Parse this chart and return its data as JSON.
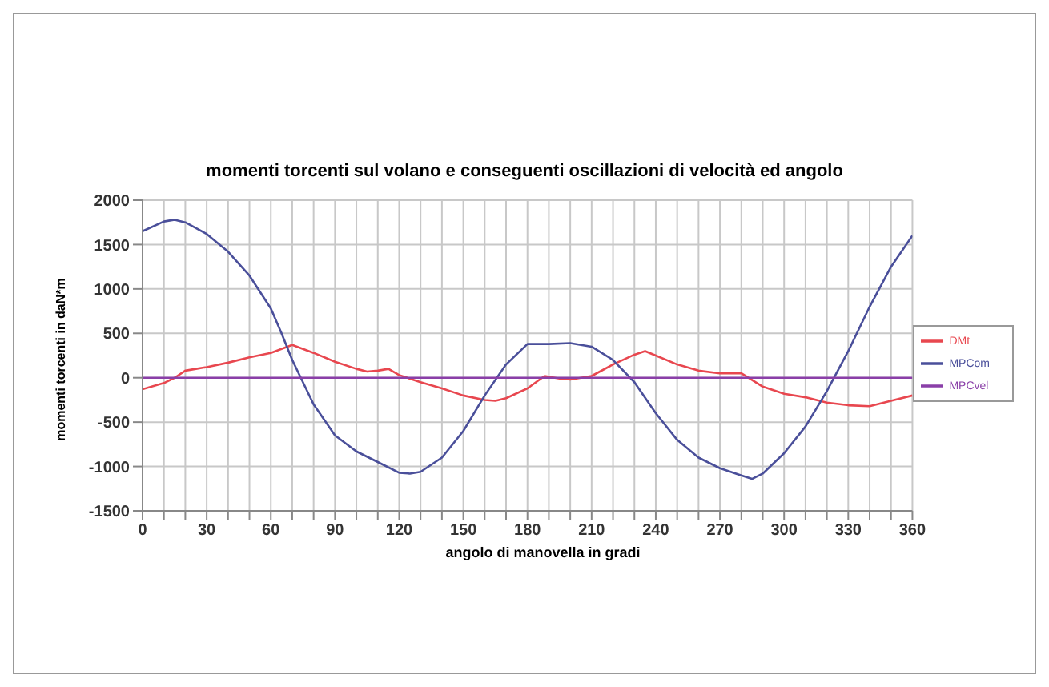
{
  "chart_data": {
    "type": "line",
    "title": "momenti torcenti sul volano e conseguenti oscillazioni di velocità ed angolo",
    "xlabel": "angolo di manovella in gradi",
    "ylabel": "momenti torcenti in daN*m",
    "series": [
      {
        "name": "DMt",
        "color": "#e8474f",
        "x": [
          0,
          10,
          15,
          20,
          25,
          30,
          40,
          50,
          60,
          70,
          80,
          90,
          100,
          105,
          110,
          115,
          120,
          130,
          140,
          150,
          160,
          165,
          170,
          180,
          188,
          195,
          200,
          210,
          220,
          230,
          235,
          240,
          250,
          260,
          270,
          280,
          290,
          300,
          310,
          320,
          330,
          340,
          350,
          360
        ],
        "values": [
          -130,
          -60,
          0,
          80,
          100,
          120,
          170,
          230,
          280,
          370,
          280,
          180,
          100,
          70,
          80,
          100,
          30,
          -50,
          -120,
          -200,
          -250,
          -260,
          -230,
          -120,
          20,
          -10,
          -20,
          20,
          150,
          260,
          300,
          250,
          150,
          80,
          50,
          50,
          -100,
          -180,
          -220,
          -280,
          -310,
          -320,
          -260,
          -200
        ]
      },
      {
        "name": "MPCom",
        "color": "#4a4f9a",
        "x": [
          0,
          10,
          15,
          20,
          30,
          40,
          50,
          60,
          65,
          70,
          80,
          90,
          100,
          110,
          120,
          125,
          130,
          140,
          150,
          160,
          170,
          180,
          190,
          200,
          210,
          220,
          230,
          240,
          250,
          260,
          270,
          280,
          285,
          290,
          300,
          310,
          320,
          330,
          340,
          350,
          360
        ],
        "values": [
          1650,
          1760,
          1780,
          1750,
          1620,
          1420,
          1150,
          780,
          500,
          200,
          -300,
          -650,
          -830,
          -950,
          -1070,
          -1080,
          -1060,
          -900,
          -600,
          -200,
          150,
          380,
          380,
          390,
          350,
          200,
          -50,
          -400,
          -700,
          -900,
          -1020,
          -1100,
          -1140,
          -1080,
          -850,
          -550,
          -150,
          300,
          800,
          1250,
          1600
        ]
      },
      {
        "name": "MPCvel",
        "color": "#8a3fa8",
        "x": [
          0,
          90,
          180,
          270,
          360
        ],
        "values": [
          0,
          0,
          0,
          0,
          0
        ]
      }
    ],
    "xlim": [
      0,
      360
    ],
    "xticks": [
      0,
      {
        "value": 10,
        "label": null
      },
      {
        "value": 20,
        "label": null
      },
      30,
      {
        "value": 40,
        "label": null
      },
      {
        "value": 50,
        "label": null
      },
      60,
      {
        "value": 70,
        "label": null
      },
      {
        "value": 80,
        "label": null
      },
      90,
      {
        "value": 100,
        "label": null
      },
      {
        "value": 110,
        "label": null
      },
      120,
      {
        "value": 130,
        "label": null
      },
      {
        "value": 140,
        "label": null
      },
      150,
      {
        "value": 160,
        "label": null
      },
      {
        "value": 170,
        "label": null
      },
      180,
      {
        "value": 190,
        "label": null
      },
      {
        "value": 200,
        "label": null
      },
      210,
      {
        "value": 220,
        "label": null
      },
      {
        "value": 230,
        "label": null
      },
      240,
      {
        "value": 250,
        "label": null
      },
      {
        "value": 260,
        "label": null
      },
      270,
      {
        "value": 280,
        "label": null
      },
      {
        "value": 290,
        "label": null
      },
      300,
      {
        "value": 310,
        "label": null
      },
      {
        "value": 320,
        "label": null
      },
      330,
      {
        "value": 340,
        "label": null
      },
      {
        "value": 350,
        "label": null
      },
      360
    ],
    "ylim": [
      -1500,
      2000
    ],
    "yticks": [
      -1500,
      -1000,
      -500,
      0,
      500,
      1000,
      1500,
      2000
    ],
    "grid": true,
    "legend": "right",
    "marker": "none",
    "line_style": "solid"
  }
}
